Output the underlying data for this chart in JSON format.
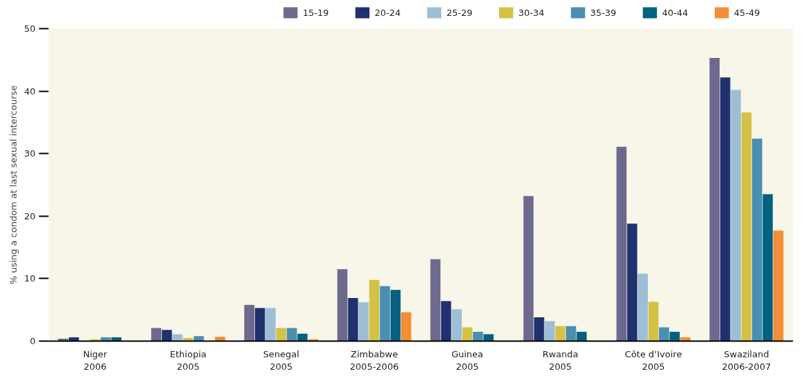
{
  "chart_data": {
    "type": "bar",
    "ylabel": "% using a condom at last sexual intercourse",
    "categories": [
      "Niger\n2006",
      "Ethiopia\n2005",
      "Senegal\n2005",
      "Zimbabwe\n2005-2006",
      "Guinea\n2005",
      "Rwanda\n2005",
      "Côte d’Ivoire\n2005",
      "Swaziland\n2006-2007"
    ],
    "series": [
      {
        "name": "15-19",
        "color": "#6e6a8e",
        "values": [
          0.4,
          2.1,
          5.8,
          11.5,
          13.1,
          23.2,
          31.1,
          45.3
        ]
      },
      {
        "name": "20-24",
        "color": "#21316f",
        "values": [
          0.6,
          1.8,
          5.3,
          6.9,
          6.4,
          3.8,
          18.8,
          42.2
        ]
      },
      {
        "name": "25-29",
        "color": "#9dbfd6",
        "values": [
          null,
          1.1,
          5.3,
          6.2,
          5.1,
          3.2,
          10.8,
          40.2
        ]
      },
      {
        "name": "30-34",
        "color": "#d4c245",
        "values": [
          0.3,
          0.5,
          2.1,
          9.8,
          2.2,
          2.4,
          6.3,
          36.6
        ]
      },
      {
        "name": "35-39",
        "color": "#4a8fb2",
        "values": [
          0.6,
          0.8,
          2.1,
          8.8,
          1.5,
          2.4,
          2.2,
          32.4
        ]
      },
      {
        "name": "40-44",
        "color": "#04617f",
        "values": [
          0.6,
          null,
          1.2,
          8.2,
          1.1,
          1.5,
          1.5,
          23.5
        ]
      },
      {
        "name": "45-49",
        "color": "#f28e35",
        "values": [
          null,
          0.7,
          0.3,
          4.6,
          null,
          null,
          0.6,
          17.7
        ]
      }
    ],
    "ylim": [
      0,
      50
    ],
    "yticks": [
      0,
      10,
      20,
      30,
      40,
      50
    ],
    "grid": false,
    "legend": "top right"
  }
}
